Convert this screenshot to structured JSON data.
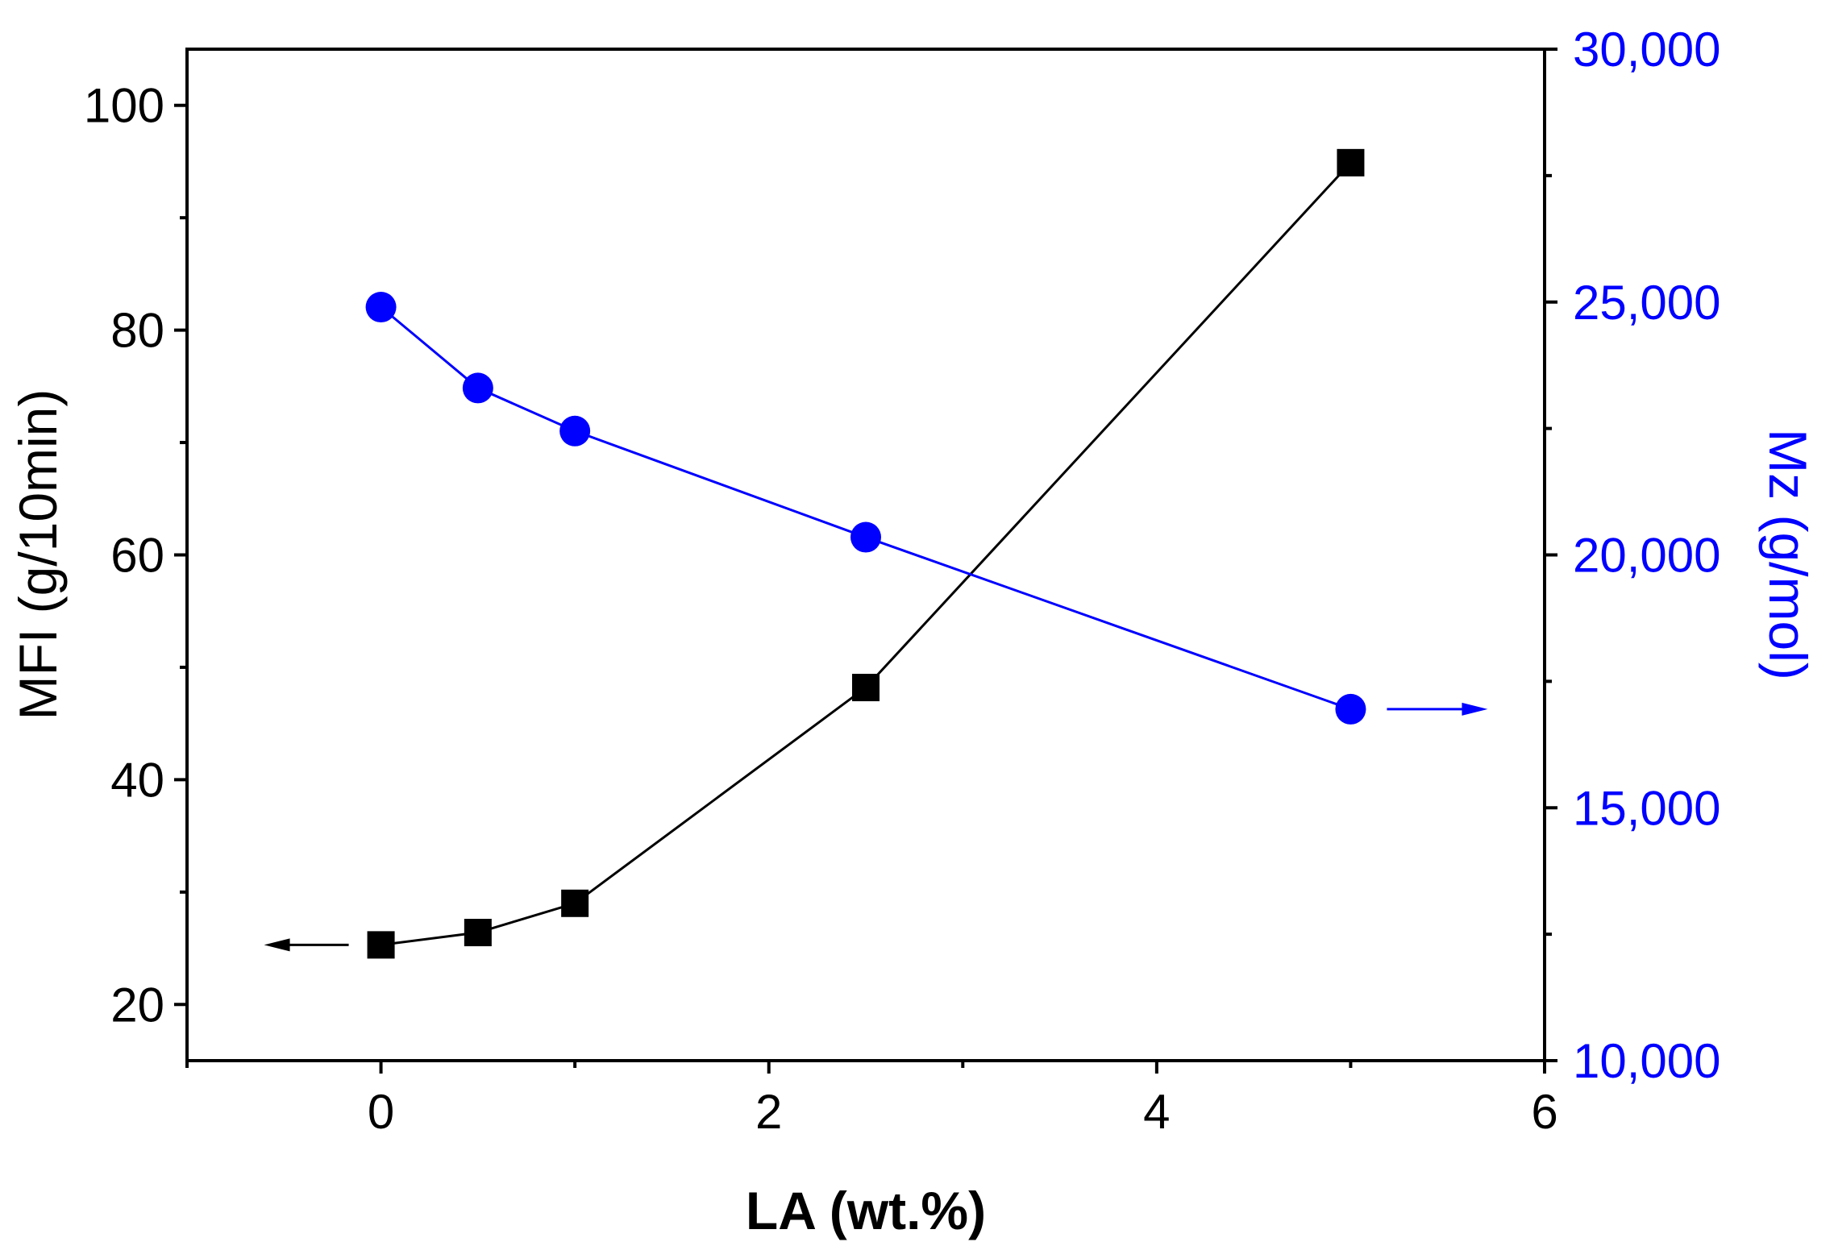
{
  "chart_data": {
    "type": "line",
    "xlabel": "LA (wt.%)",
    "ylabel_left": "MFI (g/10min)",
    "ylabel_right": "Mz (g/mol)",
    "xlim": [
      -1,
      6
    ],
    "ylim_left": [
      15,
      105
    ],
    "ylim_right": [
      10000,
      30000
    ],
    "x_ticks": [
      0,
      2,
      4,
      6
    ],
    "x_tick_labels": [
      "0",
      "2",
      "4",
      "6"
    ],
    "y_left_ticks": [
      20,
      40,
      60,
      80,
      100
    ],
    "y_left_tick_labels": [
      "20",
      "40",
      "60",
      "80",
      "100"
    ],
    "y_right_ticks": [
      10000,
      15000,
      20000,
      25000,
      30000
    ],
    "y_right_tick_labels": [
      "10,000",
      "15,000",
      "20,000",
      "25,000",
      "30,000"
    ],
    "grid": false,
    "series": [
      {
        "name": "MFI",
        "axis": "left",
        "marker": "square",
        "color": "#000000",
        "x": [
          0,
          0.5,
          1,
          2.5,
          5
        ],
        "values": [
          25.3,
          26.4,
          29.0,
          48.2,
          94.9
        ]
      },
      {
        "name": "Mz",
        "axis": "right",
        "marker": "circle",
        "color": "#0000ff",
        "x": [
          0,
          0.5,
          1,
          2.5,
          5
        ],
        "values": [
          24900,
          23300,
          22450,
          20350,
          16950
        ]
      }
    ],
    "annotations": [
      {
        "type": "arrow",
        "direction": "left",
        "series": "MFI",
        "color": "#000000"
      },
      {
        "type": "arrow",
        "direction": "right",
        "series": "Mz",
        "color": "#0000ff"
      }
    ]
  }
}
